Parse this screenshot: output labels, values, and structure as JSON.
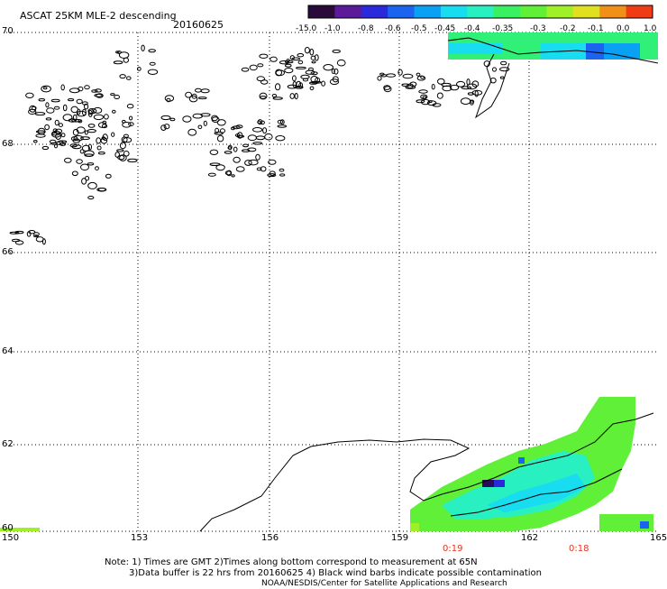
{
  "title": "ASCAT 25KM MLE-2 descending",
  "date": "20160625",
  "colorbar": {
    "labels": [
      "-15.0",
      "-1.0",
      "-0.8",
      "-0.6",
      "-0.5",
      "-0.45",
      "-0.4",
      "-0.35",
      "-0.3",
      "-0.2",
      "-0.1",
      "0.0",
      "1.0"
    ],
    "colors": [
      "#2a0a3a",
      "#5a1a9a",
      "#2a2adc",
      "#1a64f0",
      "#0aa0f4",
      "#18dcf0",
      "#28f0c0",
      "#38f060",
      "#60f038",
      "#a0f028",
      "#e0e020",
      "#f09018",
      "#f03c14"
    ]
  },
  "map": {
    "lat_labels": [
      "70",
      "68",
      "66",
      "64",
      "62",
      "60"
    ],
    "lon_labels": [
      "150",
      "153",
      "156",
      "159",
      "162",
      "165"
    ],
    "time_labels": [
      "0:19",
      "0:18"
    ]
  },
  "notes": {
    "line1": "Note: 1) Times are GMT 2)Times along bottom correspond to measurement at 65N",
    "line2": "3)Data buffer is 22 hrs from 20160625 4) Black wind barbs indicate possible contamination",
    "line3": "NOAA/NESDIS/Center for Satellite Applications and Research"
  }
}
